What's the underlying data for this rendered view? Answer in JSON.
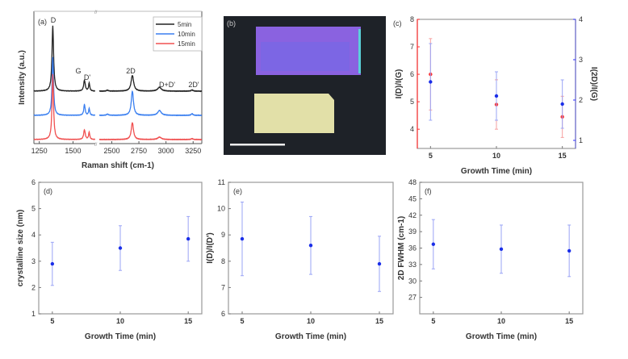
{
  "colors": {
    "black": "#222222",
    "blue": "#3a7ff0",
    "red": "#f05050",
    "point": "#1a2ee8",
    "errbar": "#9aa4f5",
    "red_axis": "#ff3030",
    "blue_axis": "#3030ff"
  },
  "panel_a": {
    "label": "(a)",
    "legend": [
      "5min",
      "10min",
      "15min"
    ],
    "peak_labels": [
      "D",
      "G",
      "D'",
      "2D",
      "D+D'",
      "2D'"
    ]
  },
  "panel_b": {
    "label": "(b)"
  },
  "chart_data": [
    {
      "id": "a",
      "type": "line",
      "xlabel": "Raman shift (cm-1)",
      "ylabel": "Intensity (a.u.)",
      "x_segments": [
        [
          1210,
          1665
        ],
        [
          2385,
          3330
        ]
      ],
      "xticks": [
        1250,
        1500,
        2500,
        2750,
        3000,
        3250
      ],
      "series": [
        {
          "name": "5min",
          "offset": 2,
          "peaks": [
            [
              1350,
              2.7,
              14
            ],
            [
              1585,
              0.45,
              14
            ],
            [
              1620,
              0.33,
              10
            ],
            [
              2690,
              0.65,
              28
            ],
            [
              2940,
              0.16,
              40
            ],
            [
              3240,
              0.05,
              20
            ],
            [
              2460,
              0.04,
              20
            ]
          ]
        },
        {
          "name": "10min",
          "offset": 1,
          "peaks": [
            [
              1350,
              2.4,
              13
            ],
            [
              1585,
              0.45,
              12
            ],
            [
              1620,
              0.28,
              10
            ],
            [
              2690,
              1.0,
              24
            ],
            [
              2940,
              0.2,
              38
            ],
            [
              3240,
              0.07,
              18
            ],
            [
              2460,
              0.05,
              20
            ]
          ]
        },
        {
          "name": "15min",
          "offset": 0,
          "peaks": [
            [
              1350,
              2.7,
              13
            ],
            [
              1585,
              0.4,
              14
            ],
            [
              1620,
              0.3,
              10
            ],
            [
              2690,
              0.7,
              24
            ],
            [
              2940,
              0.1,
              40
            ],
            [
              3240,
              0.04,
              20
            ]
          ]
        }
      ]
    },
    {
      "id": "c",
      "label": "(c)",
      "type": "scatter",
      "xlabel": "Growth Time (min)",
      "ylabel": "I(D)/I(G)",
      "ylabel_right": "I(2D)/I(G)",
      "x": [
        5,
        10,
        15
      ],
      "xlim": [
        4,
        16
      ],
      "xticks": [
        5,
        10,
        15
      ],
      "ylim": [
        3.3,
        8
      ],
      "yticks": [
        4,
        5,
        6,
        7,
        8
      ],
      "ylim_right": [
        0.8,
        4
      ],
      "yticks_right": [
        1,
        2,
        3,
        4
      ],
      "series": [
        {
          "name": "I(D)/I(G)",
          "axis": "left",
          "values": [
            6.0,
            4.9,
            4.45
          ],
          "errors": [
            1.3,
            0.9,
            0.75
          ]
        },
        {
          "name": "I(2D)/I(G)",
          "axis": "right",
          "values": [
            2.45,
            2.1,
            1.9
          ],
          "errors": [
            0.95,
            0.6,
            0.6
          ]
        }
      ]
    },
    {
      "id": "d",
      "label": "(d)",
      "type": "scatter",
      "xlabel": "Growth Time (min)",
      "ylabel": "crystalline size (nm)",
      "x": [
        5,
        10,
        15
      ],
      "xlim": [
        4,
        16
      ],
      "xticks": [
        5,
        10,
        15
      ],
      "ylim": [
        1,
        6
      ],
      "yticks": [
        1,
        2,
        3,
        4,
        5,
        6
      ],
      "values": [
        2.9,
        3.5,
        3.85
      ],
      "errors": [
        0.82,
        0.85,
        0.85
      ]
    },
    {
      "id": "e",
      "label": "(e)",
      "type": "scatter",
      "xlabel": "Growth Time (min)",
      "ylabel": "I(D)/I(D')",
      "x": [
        5,
        10,
        15
      ],
      "xlim": [
        4,
        16
      ],
      "xticks": [
        5,
        10,
        15
      ],
      "ylim": [
        6,
        11
      ],
      "yticks": [
        6,
        7,
        8,
        9,
        10,
        11
      ],
      "values": [
        8.85,
        8.6,
        7.9
      ],
      "errors": [
        1.4,
        1.1,
        1.05
      ]
    },
    {
      "id": "f",
      "label": "(f)",
      "type": "scatter",
      "xlabel": "Growth Time (min)",
      "ylabel": "2D FWHM (cm-1)",
      "x": [
        5,
        10,
        15
      ],
      "xlim": [
        4,
        16
      ],
      "xticks": [
        5,
        10,
        15
      ],
      "ylim": [
        24,
        48
      ],
      "yticks": [
        27,
        30,
        33,
        36,
        39,
        42,
        45,
        48
      ],
      "values": [
        36.7,
        35.8,
        35.5
      ],
      "errors": [
        4.5,
        4.4,
        4.7
      ]
    }
  ]
}
